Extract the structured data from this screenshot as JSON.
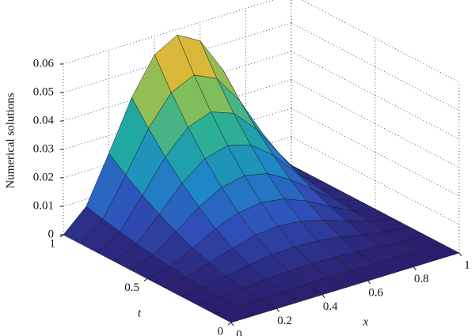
{
  "chart_data": {
    "type": "surface",
    "zlabel": "Numerical solutions",
    "xlabel": "x",
    "ylabel": "t",
    "x": [
      0,
      0.1,
      0.2,
      0.3,
      0.4,
      0.5,
      0.6,
      0.7,
      0.8,
      0.9,
      1
    ],
    "y": [
      0,
      0.1,
      0.2,
      0.3,
      0.4,
      0.5,
      0.6,
      0.7,
      0.8,
      0.9,
      1
    ],
    "z": [
      [
        0,
        0,
        0,
        0,
        0,
        0,
        0,
        0,
        0,
        0,
        0
      ],
      [
        0,
        0.0001,
        0.0002,
        0.0004,
        0.0005,
        0.0006,
        0.0005,
        0.0004,
        0.0002,
        0.0001,
        0
      ],
      [
        0,
        0.0003,
        0.001,
        0.0016,
        0.0021,
        0.0023,
        0.0021,
        0.0016,
        0.001,
        0.0003,
        0
      ],
      [
        0,
        0.0007,
        0.0021,
        0.0037,
        0.0048,
        0.0052,
        0.0048,
        0.0037,
        0.0021,
        0.0007,
        0
      ],
      [
        0,
        0.0012,
        0.0038,
        0.0065,
        0.0086,
        0.0093,
        0.0086,
        0.0065,
        0.0038,
        0.0012,
        0
      ],
      [
        0,
        0.0019,
        0.0059,
        0.0102,
        0.0134,
        0.0145,
        0.0134,
        0.0102,
        0.0059,
        0.0019,
        0
      ],
      [
        0,
        0.0027,
        0.0086,
        0.0147,
        0.0192,
        0.0209,
        0.0192,
        0.0147,
        0.0086,
        0.0027,
        0
      ],
      [
        0,
        0.0037,
        0.0116,
        0.0201,
        0.0262,
        0.0284,
        0.0262,
        0.0201,
        0.0116,
        0.0037,
        0
      ],
      [
        0,
        0.0048,
        0.0152,
        0.0262,
        0.0342,
        0.0371,
        0.0342,
        0.0262,
        0.0152,
        0.0048,
        0
      ],
      [
        0,
        0.0061,
        0.0192,
        0.0331,
        0.0433,
        0.047,
        0.0433,
        0.0331,
        0.0192,
        0.0061,
        0
      ],
      [
        0,
        0.0075,
        0.0238,
        0.0409,
        0.0535,
        0.058,
        0.0535,
        0.0409,
        0.0238,
        0.0075,
        0
      ]
    ],
    "xlim": [
      0,
      1
    ],
    "ylim": [
      0,
      1
    ],
    "zlim": [
      0,
      0.06
    ],
    "xticks": [
      0,
      0.2,
      0.4,
      0.6,
      0.8,
      1
    ],
    "yticks": [
      0,
      0.5,
      1
    ],
    "zticks": [
      0,
      0.01,
      0.02,
      0.03,
      0.04,
      0.05,
      0.06
    ],
    "grid": true,
    "colormap": [
      "#2a1f6e",
      "#2f4fb8",
      "#1f86c8",
      "#20aca0",
      "#7bbf5c",
      "#d8b63a",
      "#f9e820"
    ]
  }
}
